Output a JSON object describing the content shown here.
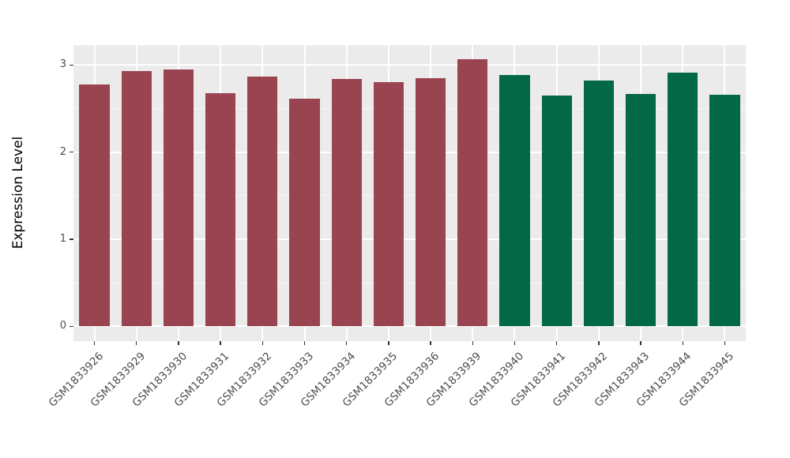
{
  "chart_data": {
    "type": "bar",
    "title": "",
    "xlabel": "",
    "ylabel": "Expression Level",
    "categories": [
      "GSM1833926",
      "GSM1833929",
      "GSM1833930",
      "GSM1833931",
      "GSM1833932",
      "GSM1833933",
      "GSM1833934",
      "GSM1833935",
      "GSM1833936",
      "GSM1833939",
      "GSM1833940",
      "GSM1833941",
      "GSM1833942",
      "GSM1833943",
      "GSM1833944",
      "GSM1833945"
    ],
    "values": [
      2.78,
      2.93,
      2.95,
      2.68,
      2.87,
      2.61,
      2.84,
      2.8,
      2.85,
      3.07,
      2.89,
      2.65,
      2.82,
      2.67,
      2.91,
      2.66
    ],
    "groups": [
      "A",
      "A",
      "A",
      "A",
      "A",
      "A",
      "A",
      "A",
      "A",
      "A",
      "B",
      "B",
      "B",
      "B",
      "B",
      "B"
    ],
    "group_colors": {
      "A": "#9B4451",
      "B": "#026845"
    },
    "yticks": [
      0,
      1,
      2,
      3
    ],
    "yticks_minor": [
      0.5,
      1.5,
      2.5
    ],
    "ylim": [
      -0.17,
      3.23
    ],
    "bar_width_ratio": 0.72,
    "legend": "none",
    "grid": "on",
    "colors": {
      "panel_background": "#EBEBEB",
      "plot_background": "#FFFFFF",
      "gridline": "#FFFFFF",
      "tick_mark": "#333333",
      "tick_label": "#4D4D4D",
      "axis_title": "#000000"
    }
  }
}
